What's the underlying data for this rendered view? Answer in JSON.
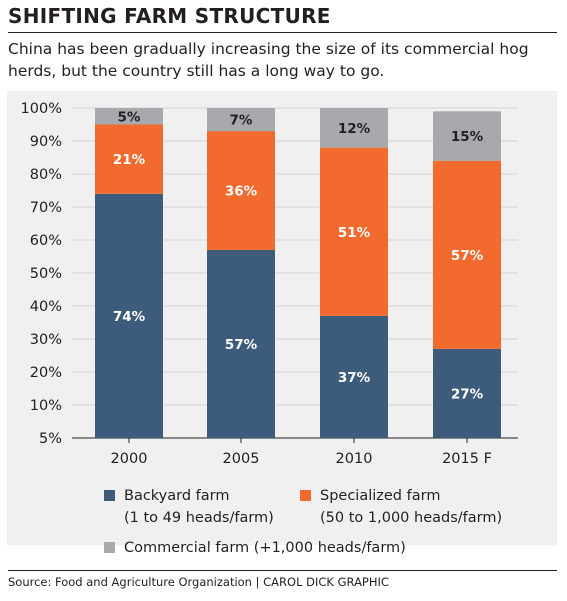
{
  "header": {
    "title": "SHIFTING FARM STRUCTURE",
    "subtitle": "China has been gradually increasing the size of its commercial hog herds, but the country still has a long way to go."
  },
  "colors": {
    "backyard": "#3d5c7b",
    "specialized": "#f26a2e",
    "commercial": "#a7a9ac",
    "background": "#f0f0f1",
    "grid": "#d5d5d7"
  },
  "chart_data": {
    "type": "bar",
    "stacked": true,
    "categories": [
      "2000",
      "2005",
      "2010",
      "2015 F"
    ],
    "series": [
      {
        "name": "Backyard farm (1 to 49 heads/farm)",
        "values": [
          74,
          57,
          37,
          27
        ],
        "labels": [
          "74%",
          "57%",
          "37%",
          "27%"
        ]
      },
      {
        "name": "Specialized farm (50 to 1,000 heads/farm)",
        "values": [
          21,
          36,
          51,
          57
        ],
        "labels": [
          "21%",
          "36%",
          "51%",
          "57%"
        ]
      },
      {
        "name": "Commercial farm (+1,000 heads/farm)",
        "values": [
          5,
          7,
          12,
          15
        ],
        "labels": [
          "5%",
          "7%",
          "12%",
          "15%"
        ]
      }
    ],
    "y_ticks": [
      "100%",
      "90%",
      "80%",
      "70%",
      "60%",
      "50%",
      "40%",
      "30%",
      "20%",
      "10%",
      "5%"
    ],
    "ylim": [
      0,
      100
    ],
    "grid": true
  },
  "legend": {
    "backyard_line1": "Backyard farm",
    "backyard_line2": "(1 to 49 heads/farm)",
    "specialized_line1": "Specialized farm",
    "specialized_line2": "(50 to 1,000 heads/farm)",
    "commercial": "Commercial farm (+1,000 heads/farm)"
  },
  "source": "Source: Food and Agriculture Organization  |  CAROL DICK GRAPHIC"
}
